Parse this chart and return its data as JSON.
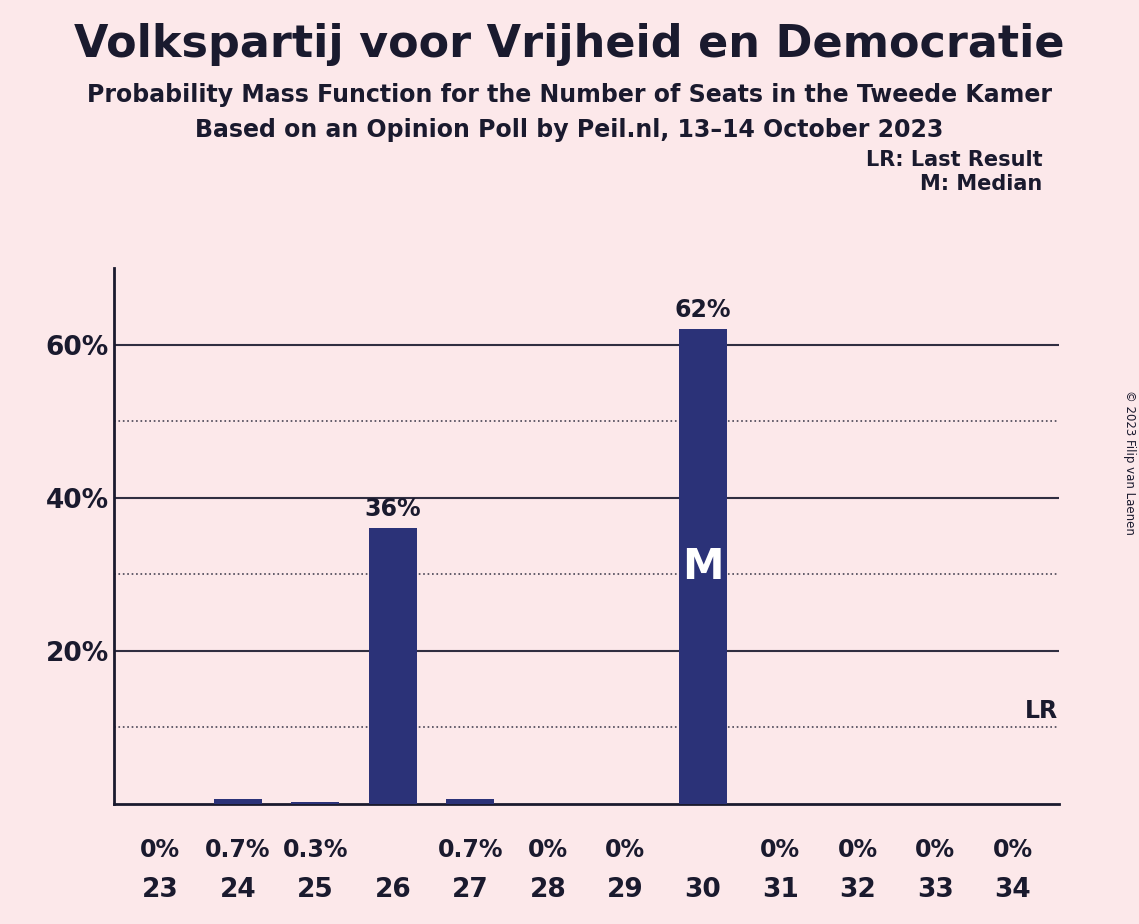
{
  "title": "Volkspartij voor Vrijheid en Democratie",
  "subtitle1": "Probability Mass Function for the Number of Seats in the Tweede Kamer",
  "subtitle2": "Based on an Opinion Poll by Peil.nl, 13–14 October 2023",
  "copyright": "© 2023 Filip van Laenen",
  "categories": [
    23,
    24,
    25,
    26,
    27,
    28,
    29,
    30,
    31,
    32,
    33,
    34
  ],
  "values": [
    0.0,
    0.7,
    0.3,
    36.0,
    0.7,
    0.0,
    0.0,
    62.0,
    0.0,
    0.0,
    0.0,
    0.0
  ],
  "bar_color": "#2b3278",
  "background_color": "#fce8ea",
  "text_color": "#1a1a2e",
  "median_seat": 30,
  "lr_value": 10.0,
  "ylim": [
    0,
    70
  ],
  "solid_yticks": [
    20,
    40,
    60
  ],
  "dotted_yticks": [
    10,
    30,
    50
  ],
  "label_map": {
    "0.0": "0%",
    "0.3": "0.3%",
    "0.7": "0.7%",
    "36.0": "36%",
    "62.0": "62%"
  }
}
